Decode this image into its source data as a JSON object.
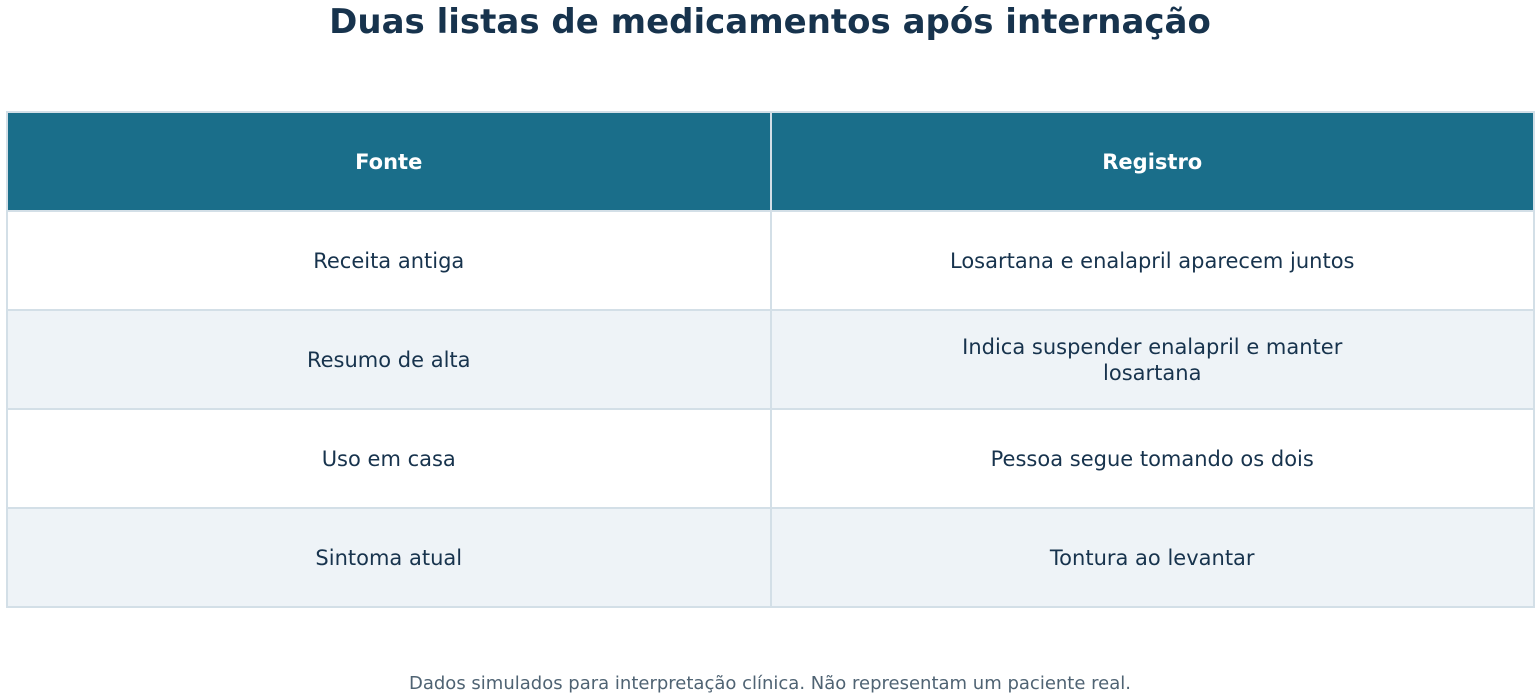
{
  "title": "Duas listas de medicamentos após internação",
  "table": {
    "header": [
      "Fonte",
      "Registro"
    ],
    "rows": [
      [
        "Receita antiga",
        "Losartana e enalapril aparecem juntos"
      ],
      [
        "Resumo de alta",
        "Indica suspender enalapril e manter losartana"
      ],
      [
        "Uso em casa",
        "Pessoa segue tomando os dois"
      ],
      [
        "Sintoma atual",
        "Tontura ao levantar"
      ]
    ]
  },
  "footnote": "Dados simulados para interpretação clínica. Não representam um paciente real."
}
